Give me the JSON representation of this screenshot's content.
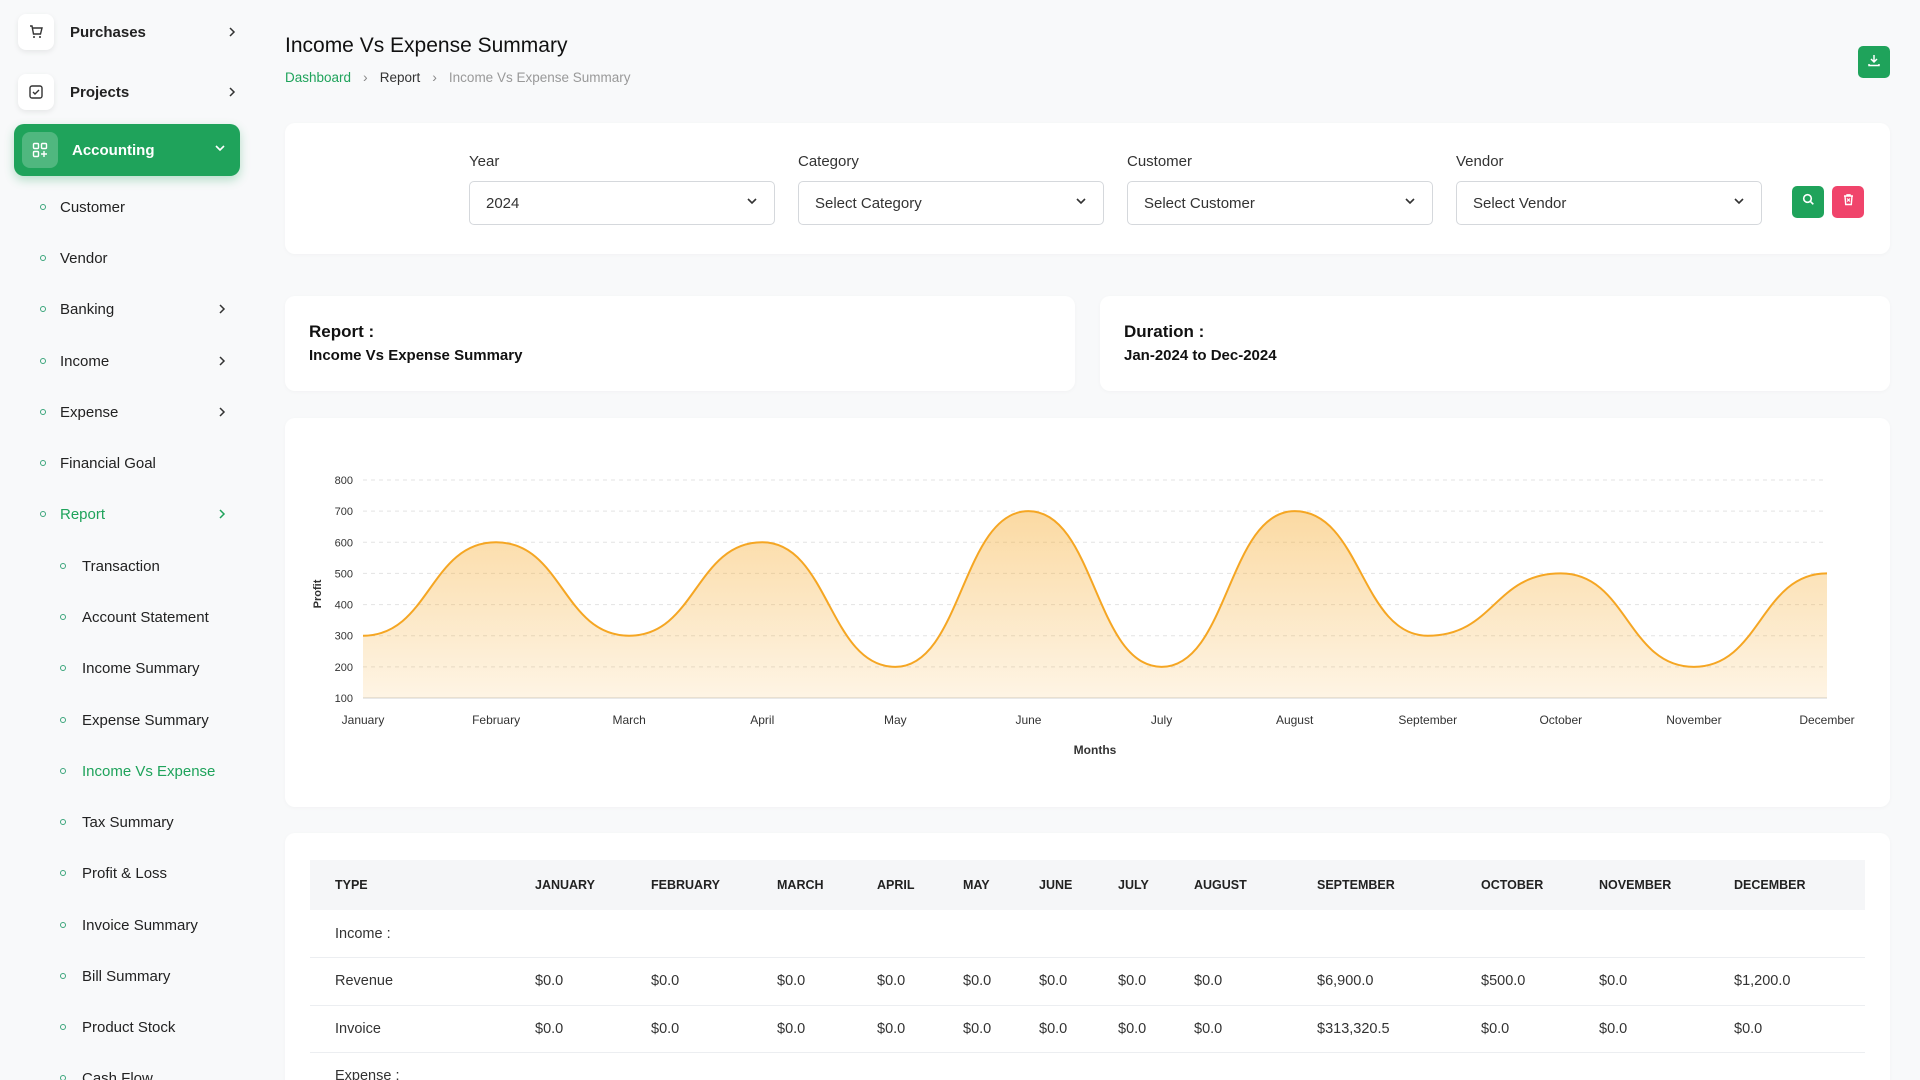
{
  "sidebar": {
    "top_items": [
      {
        "label": "Purchases"
      },
      {
        "label": "Projects"
      }
    ],
    "active_item": {
      "label": "Accounting"
    },
    "sub_items": [
      {
        "label": "Customer"
      },
      {
        "label": "Vendor"
      },
      {
        "label": "Banking"
      },
      {
        "label": "Income"
      },
      {
        "label": "Expense"
      },
      {
        "label": "Financial Goal"
      },
      {
        "label": "Report"
      }
    ],
    "report_items": [
      {
        "label": "Transaction"
      },
      {
        "label": "Account Statement"
      },
      {
        "label": "Income Summary"
      },
      {
        "label": "Expense Summary"
      },
      {
        "label": "Income Vs Expense"
      },
      {
        "label": "Tax Summary"
      },
      {
        "label": "Profit & Loss"
      },
      {
        "label": "Invoice Summary"
      },
      {
        "label": "Bill Summary"
      },
      {
        "label": "Product Stock"
      },
      {
        "label": "Cash Flow"
      }
    ]
  },
  "header": {
    "title": "Income Vs Expense Summary",
    "breadcrumb": [
      "Dashboard",
      "Report",
      "Income Vs Expense Summary"
    ]
  },
  "filters": {
    "year": {
      "label": "Year",
      "value": "2024"
    },
    "category": {
      "label": "Category",
      "value": "Select Category"
    },
    "customer": {
      "label": "Customer",
      "value": "Select Customer"
    },
    "vendor": {
      "label": "Vendor",
      "value": "Select Vendor"
    }
  },
  "info": {
    "report": {
      "title": "Report :",
      "value": "Income Vs Expense Summary"
    },
    "duration": {
      "title": "Duration :",
      "value": "Jan-2024 to Dec-2024"
    }
  },
  "chart_data": {
    "type": "area",
    "categories": [
      "January",
      "February",
      "March",
      "April",
      "May",
      "June",
      "July",
      "August",
      "September",
      "October",
      "November",
      "December"
    ],
    "series": [
      {
        "values": [
          300,
          600,
          300,
          600,
          200,
          700,
          200,
          700,
          300,
          500,
          200,
          500
        ]
      }
    ],
    "xlabel": "Months",
    "ylabel": "Profit",
    "ylim": [
      100,
      800
    ],
    "yticks": [
      100,
      200,
      300,
      400,
      500,
      600,
      700,
      800
    ],
    "grid": true,
    "color": "#f5a623"
  },
  "table": {
    "headers": [
      "TYPE",
      "JANUARY",
      "FEBRUARY",
      "MARCH",
      "APRIL",
      "MAY",
      "JUNE",
      "JULY",
      "AUGUST",
      "SEPTEMBER",
      "OCTOBER",
      "NOVEMBER",
      "DECEMBER"
    ],
    "income_section": "Income :",
    "rows": [
      {
        "type": "Revenue",
        "values": [
          "$0.0",
          "$0.0",
          "$0.0",
          "$0.0",
          "$0.0",
          "$0.0",
          "$0.0",
          "$0.0",
          "$6,900.0",
          "$500.0",
          "$0.0",
          "$1,200.0"
        ]
      },
      {
        "type": "Invoice",
        "values": [
          "$0.0",
          "$0.0",
          "$0.0",
          "$0.0",
          "$0.0",
          "$0.0",
          "$0.0",
          "$0.0",
          "$313,320.5",
          "$0.0",
          "$0.0",
          "$0.0"
        ]
      }
    ],
    "expense_section": "Expense :"
  },
  "colors": {
    "primary": "#1fa35b",
    "danger": "#f0446b",
    "chart_line": "#f5a623"
  }
}
